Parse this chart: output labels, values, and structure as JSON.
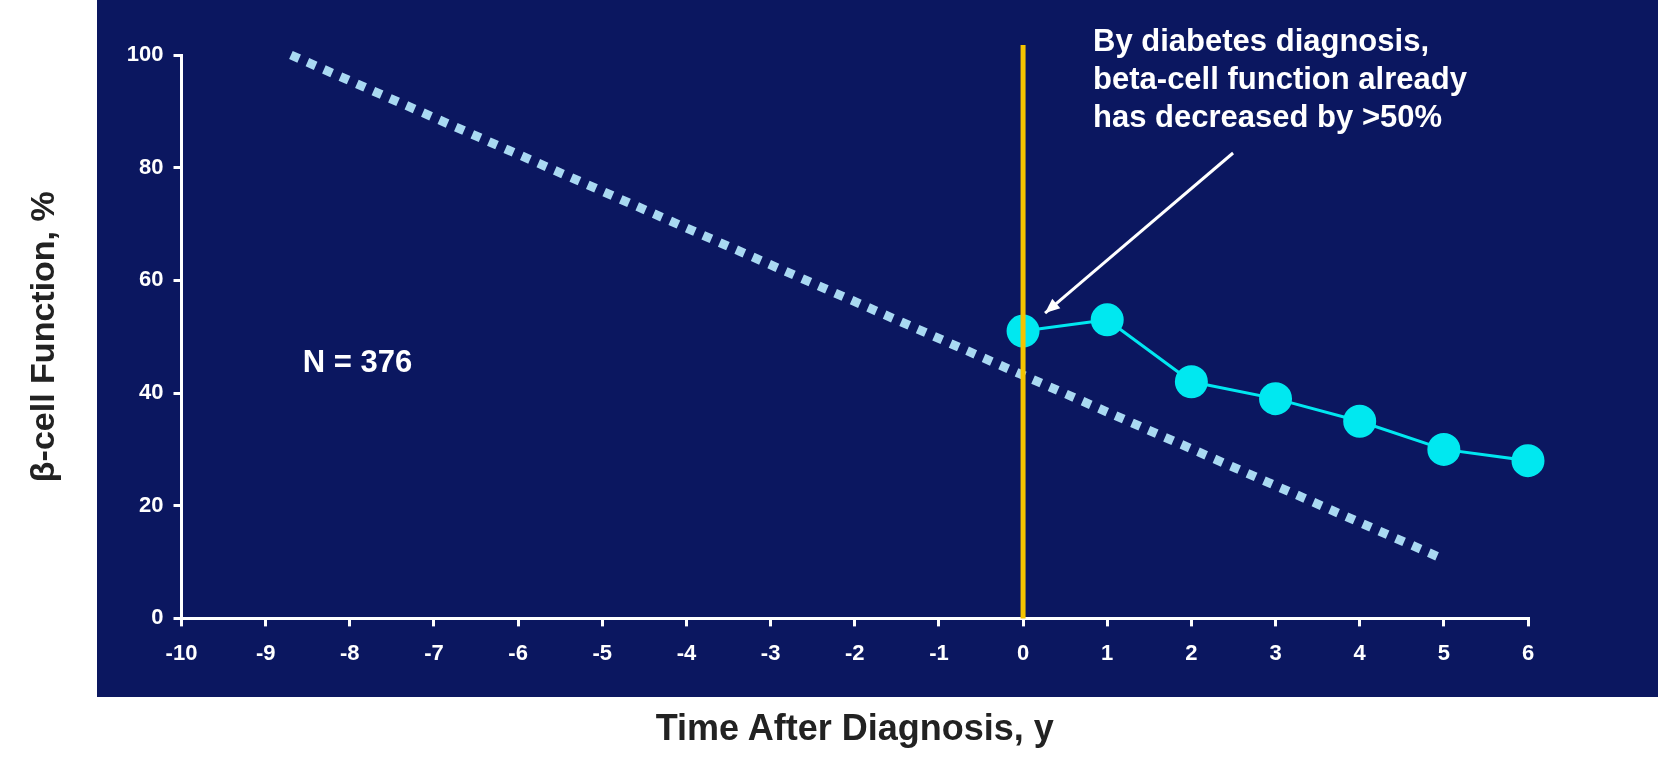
{
  "chart_data": {
    "type": "line",
    "xlabel": "Time After Diagnosis, y",
    "ylabel": "β-cell Function, %",
    "xlim": [
      -10,
      6
    ],
    "xticks": [
      -10,
      -9,
      -8,
      -7,
      -6,
      -5,
      -4,
      -3,
      -2,
      -1,
      0,
      1,
      2,
      3,
      4,
      5,
      6
    ],
    "ylim": [
      0,
      100
    ],
    "yticks": [
      0,
      20,
      40,
      60,
      80,
      100
    ],
    "grid": false,
    "legend": false,
    "series": [
      {
        "color": "#a9d9f2",
        "line_style": "dotted",
        "marker": "none",
        "x": [
          -8.7,
          5
        ],
        "values": [
          100,
          10.5
        ]
      },
      {
        "color": "#00e8f0",
        "line_style": "solid",
        "marker": "circle",
        "x": [
          0,
          1,
          2,
          3,
          4,
          5,
          6
        ],
        "values": [
          51,
          53,
          42,
          39,
          35,
          30,
          28
        ]
      }
    ],
    "ref_lines": [
      {
        "axis": "x",
        "value": 0,
        "color": "#f5c400"
      }
    ],
    "annotations": [
      "By diabetes diagnosis,\nbeta-cell function already\nhas decreased by >50%",
      "N = 376"
    ]
  }
}
